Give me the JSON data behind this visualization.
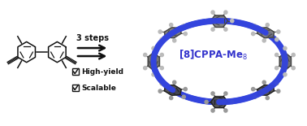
{
  "background_color": "#ffffff",
  "arrow_text": "3 steps",
  "label_color": "#3333cc",
  "checkboxes": [
    "High-yield",
    "Scalable"
  ],
  "arrow_color": "#111111",
  "molecule_color": "#111111",
  "nanohoop_ring_color": "#3344dd",
  "atom_dark": "#444444",
  "atom_mid": "#777777",
  "atom_light": "#bbbbbb",
  "atom_white": "#e8e8e8",
  "fig_width": 3.78,
  "fig_height": 1.55,
  "dpi": 100
}
